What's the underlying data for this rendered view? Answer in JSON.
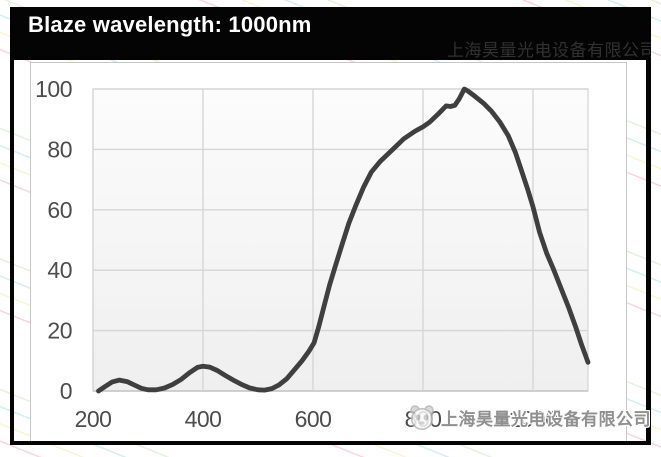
{
  "window": {
    "title": "Blaze wavelength: 1000nm"
  },
  "watermark": {
    "company_name": "上海昊量光电设备有限公司",
    "logo_icon": "panda-logo-icon"
  },
  "colors": {
    "frame": "#040404",
    "title_text": "#ffffff",
    "curve": "#3f3f3f",
    "grid": "#d6d6d6",
    "axis_line": "#c3c3c3",
    "plot_fill_top": "#fcfcfc",
    "plot_fill_bottom": "#efefef",
    "tick_label": "#4c4c4c",
    "panel_border": "#c6c6c6",
    "watermark_text": "#909090"
  },
  "chart_data": {
    "type": "line",
    "title": "Blaze wavelength: 1000nm",
    "xlabel": "",
    "ylabel": "",
    "xlim": [
      200,
      1100
    ],
    "ylim": [
      0,
      100
    ],
    "x_ticks": [
      200,
      400,
      600,
      800,
      1000
    ],
    "y_ticks": [
      0,
      20,
      40,
      60,
      80,
      100
    ],
    "grid": true,
    "legend": "none",
    "series": [
      {
        "name": "diffraction-efficiency",
        "color": "#3f3f3f",
        "points": [
          [
            210,
            0
          ],
          [
            222,
            1.5
          ],
          [
            235,
            3
          ],
          [
            248,
            3.6
          ],
          [
            262,
            3.1
          ],
          [
            275,
            2
          ],
          [
            288,
            0.9
          ],
          [
            300,
            0.4
          ],
          [
            315,
            0.4
          ],
          [
            330,
            1
          ],
          [
            345,
            2.2
          ],
          [
            360,
            3.8
          ],
          [
            375,
            6
          ],
          [
            390,
            7.8
          ],
          [
            400,
            8.2
          ],
          [
            412,
            7.9
          ],
          [
            426,
            6.8
          ],
          [
            440,
            5.2
          ],
          [
            455,
            3.6
          ],
          [
            470,
            2.2
          ],
          [
            485,
            1
          ],
          [
            500,
            0.4
          ],
          [
            512,
            0.3
          ],
          [
            525,
            0.8
          ],
          [
            538,
            2
          ],
          [
            552,
            4
          ],
          [
            566,
            7
          ],
          [
            580,
            10
          ],
          [
            592,
            13
          ],
          [
            602,
            16
          ],
          [
            610,
            21
          ],
          [
            620,
            28
          ],
          [
            630,
            35
          ],
          [
            640,
            41
          ],
          [
            652,
            48
          ],
          [
            665,
            55.5
          ],
          [
            678,
            61.5
          ],
          [
            692,
            67.5
          ],
          [
            706,
            72.5
          ],
          [
            722,
            76
          ],
          [
            745,
            80
          ],
          [
            765,
            83.5
          ],
          [
            785,
            86
          ],
          [
            800,
            87.5
          ],
          [
            812,
            89
          ],
          [
            828,
            91.8
          ],
          [
            842,
            94.4
          ],
          [
            850,
            94.2
          ],
          [
            858,
            94.6
          ],
          [
            866,
            96.8
          ],
          [
            875,
            100
          ],
          [
            881,
            99.4
          ],
          [
            895,
            97.5
          ],
          [
            910,
            95.3
          ],
          [
            925,
            92.5
          ],
          [
            940,
            89
          ],
          [
            955,
            84.5
          ],
          [
            968,
            79
          ],
          [
            980,
            72.5
          ],
          [
            990,
            67
          ],
          [
            1000,
            61
          ],
          [
            1012,
            52.5
          ],
          [
            1025,
            45.5
          ],
          [
            1038,
            40
          ],
          [
            1052,
            33.5
          ],
          [
            1065,
            27.5
          ],
          [
            1078,
            21
          ],
          [
            1088,
            15.5
          ],
          [
            1095,
            12
          ],
          [
            1100,
            9.5
          ]
        ]
      }
    ]
  }
}
